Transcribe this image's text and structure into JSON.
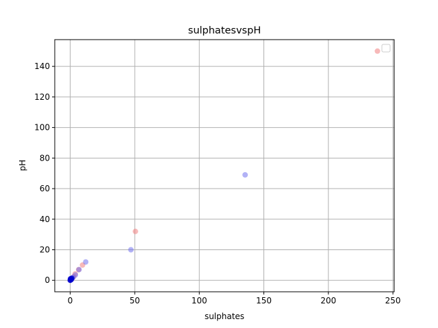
{
  "chart_data": {
    "type": "scatter",
    "title": "sulphatesvspH",
    "xlabel": "sulphates",
    "ylabel": "pH",
    "xlim": [
      -12,
      251
    ],
    "ylim": [
      -7.5,
      157.5
    ],
    "xticks": [
      0,
      50,
      100,
      150,
      200,
      250
    ],
    "yticks": [
      0,
      20,
      40,
      60,
      80,
      100,
      120,
      140
    ],
    "grid": true,
    "legend": {
      "placement": "top-right",
      "entries": []
    },
    "series": [
      {
        "color": "#f08080",
        "opacity": 0.55,
        "points": [
          {
            "x": 0.2,
            "y": 0.3
          },
          {
            "x": 0.6,
            "y": 0.8
          },
          {
            "x": 1.2,
            "y": 1.2
          },
          {
            "x": 2.8,
            "y": 2.5
          },
          {
            "x": 3.8,
            "y": 4.2
          },
          {
            "x": 6.5,
            "y": 7.0
          },
          {
            "x": 9.5,
            "y": 10.0
          },
          {
            "x": 50.5,
            "y": 32.0
          },
          {
            "x": 238.0,
            "y": 150.0
          }
        ]
      },
      {
        "color": "#6666ee",
        "opacity": 0.5,
        "points": [
          {
            "x": 0.0,
            "y": 0.2
          },
          {
            "x": 0.3,
            "y": 0.5
          },
          {
            "x": 0.7,
            "y": 1.0
          },
          {
            "x": 1.5,
            "y": 1.5
          },
          {
            "x": 2.2,
            "y": 2.0
          },
          {
            "x": 4.0,
            "y": 3.5
          },
          {
            "x": 6.8,
            "y": 7.0
          },
          {
            "x": 12.0,
            "y": 12.0
          },
          {
            "x": 47.0,
            "y": 20.0
          },
          {
            "x": 135.5,
            "y": 69.0
          }
        ]
      },
      {
        "color": "#0000cc",
        "opacity": 0.85,
        "points": [
          {
            "x": 0.0,
            "y": 0.0
          },
          {
            "x": 0.2,
            "y": 1.0
          },
          {
            "x": 0.8,
            "y": 0.5
          },
          {
            "x": 1.2,
            "y": 1.3
          }
        ]
      }
    ]
  }
}
